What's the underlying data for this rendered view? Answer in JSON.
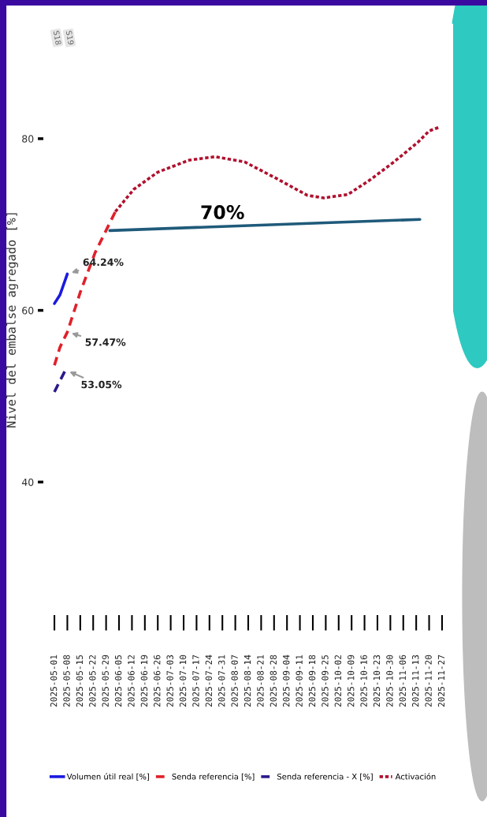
{
  "chart_data": {
    "type": "line",
    "ylabel": "Nivel del embalse agregado [%]",
    "xlim": [
      "2025-04-25",
      "2025-12-03"
    ],
    "ylim": [
      24.5,
      93.4
    ],
    "yticks": [
      40,
      60,
      80
    ],
    "xticks": [
      "2025-05-01",
      "2025-05-08",
      "2025-05-15",
      "2025-05-22",
      "2025-05-29",
      "2025-06-05",
      "2025-06-12",
      "2025-06-19",
      "2025-06-26",
      "2025-07-03",
      "2025-07-10",
      "2025-07-17",
      "2025-07-24",
      "2025-07-31",
      "2025-08-07",
      "2025-08-14",
      "2025-08-21",
      "2025-08-28",
      "2025-09-04",
      "2025-09-11",
      "2025-09-18",
      "2025-09-25",
      "2025-10-02",
      "2025-10-09",
      "2025-10-16",
      "2025-10-23",
      "2025-10-30",
      "2025-11-06",
      "2025-11-13",
      "2025-11-20",
      "2025-11-27"
    ],
    "grid": false,
    "legend": "bottom",
    "series": [
      {
        "name": "Volumen útil real [%]",
        "color": "#1a1ae0",
        "line_style": "solid",
        "x": [
          "2025-05-01",
          "2025-05-04",
          "2025-05-08"
        ],
        "values": [
          60.8,
          61.8,
          64.24
        ]
      },
      {
        "name": "Senda referencia [%]",
        "color": "#e0202a",
        "line_style": "dashed",
        "x": [
          "2025-05-01",
          "2025-05-04",
          "2025-05-08",
          "2025-05-15",
          "2025-05-23",
          "2025-06-03"
        ],
        "values": [
          53.6,
          55.7,
          57.47,
          62.1,
          66.7,
          71.5
        ]
      },
      {
        "name": "Senda referencia - X [%]",
        "color": "#2a1a8a",
        "line_style": "dashed",
        "x": [
          "2025-05-01",
          "2025-05-04",
          "2025-05-07"
        ],
        "values": [
          50.5,
          51.8,
          53.05
        ]
      },
      {
        "name": "Activación",
        "color": "#b0102e",
        "line_style": "dotted",
        "x": [
          "2025-06-03",
          "2025-06-13",
          "2025-06-26",
          "2025-07-13",
          "2025-07-27",
          "2025-08-12",
          "2025-08-29",
          "2025-09-15",
          "2025-09-24",
          "2025-10-07",
          "2025-10-19",
          "2025-11-01",
          "2025-11-14",
          "2025-11-20",
          "2025-11-25"
        ],
        "values": [
          71.5,
          74.1,
          76.1,
          77.5,
          77.9,
          77.3,
          75.4,
          73.4,
          73.1,
          73.5,
          75.2,
          77.3,
          79.6,
          80.9,
          81.3
        ]
      },
      {
        "color": "#1f5a7a",
        "line_style": "solid",
        "x": [
          "2025-05-31",
          "2025-11-15"
        ],
        "values": [
          69.3,
          70.6
        ]
      }
    ],
    "annotations": [
      {
        "text": "64.24%",
        "x": "2025-05-08",
        "y": 64.24
      },
      {
        "text": "57.47%",
        "x": "2025-05-08",
        "y": 57.47
      },
      {
        "text": "53.05%",
        "x": "2025-05-07",
        "y": 53.05
      },
      {
        "text": "70%",
        "x": "2025-07-31",
        "y": 70.2
      },
      "S18",
      "S19"
    ]
  }
}
